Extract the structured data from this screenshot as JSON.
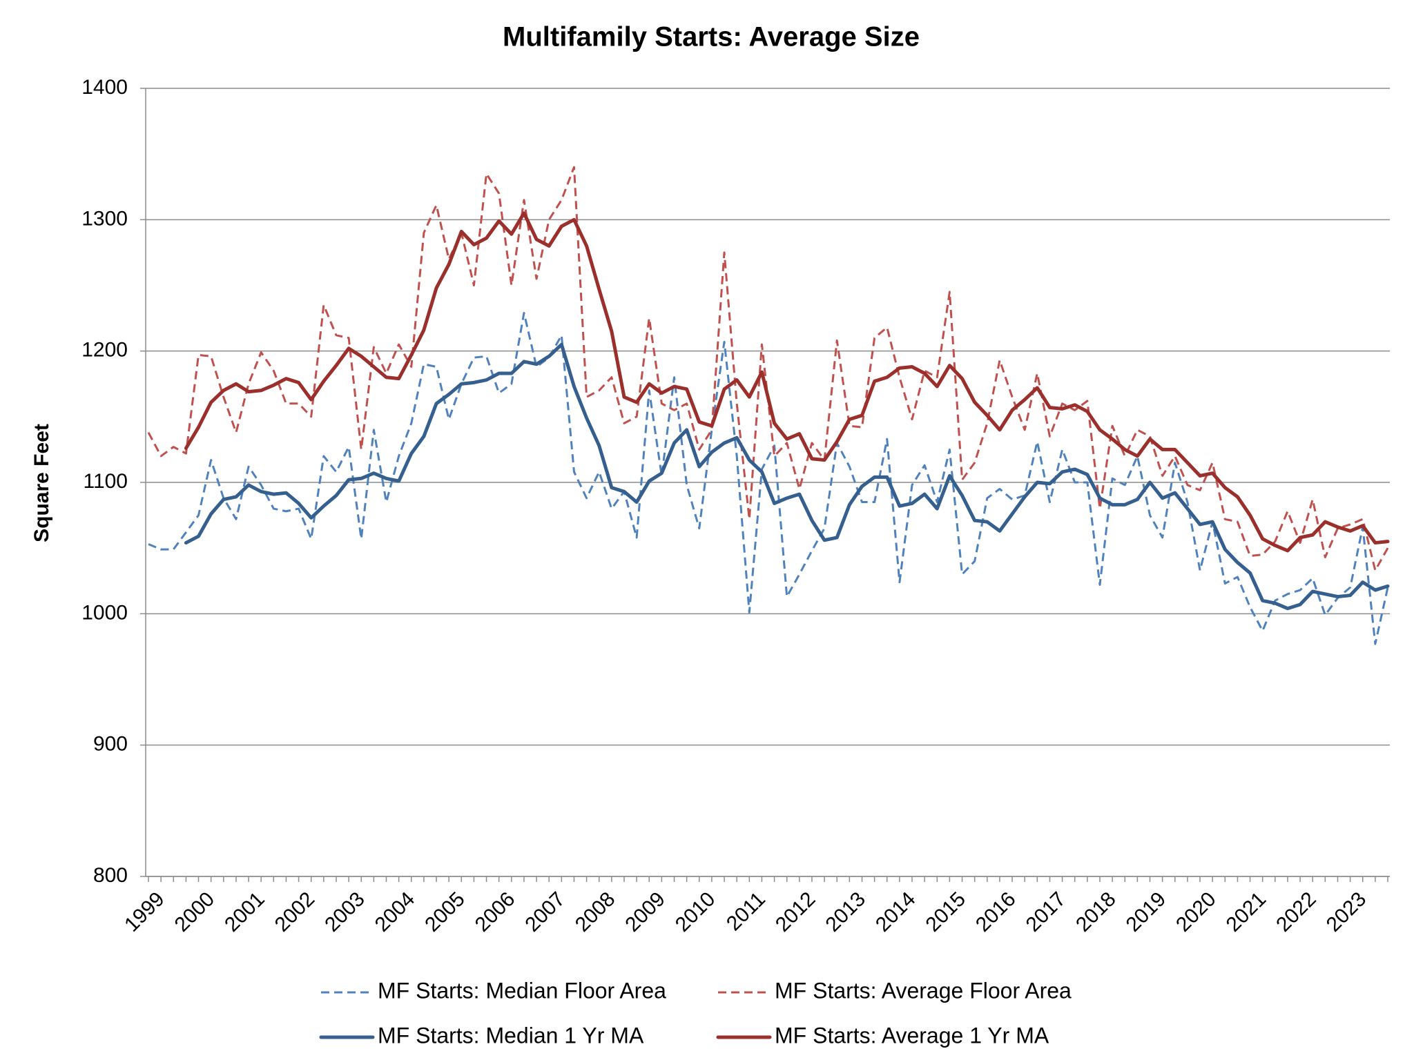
{
  "chart_data": {
    "type": "line",
    "title": "Multifamily Starts: Average Size",
    "y_label": "Square Feet",
    "categories": [
      "1999",
      null,
      null,
      null,
      "2000",
      null,
      null,
      null,
      "2001",
      null,
      null,
      null,
      "2002",
      null,
      null,
      null,
      "2003",
      null,
      null,
      null,
      "2004",
      null,
      null,
      null,
      "2005",
      null,
      null,
      null,
      "2006",
      null,
      null,
      null,
      "2007",
      null,
      null,
      null,
      "2008",
      null,
      null,
      null,
      "2009",
      null,
      null,
      null,
      "2010",
      null,
      null,
      null,
      "2011",
      null,
      null,
      null,
      "2012",
      null,
      null,
      null,
      "2013",
      null,
      null,
      null,
      "2014",
      null,
      null,
      null,
      "2015",
      null,
      null,
      null,
      "2016",
      null,
      null,
      null,
      "2017",
      null,
      null,
      null,
      "2018",
      null,
      null,
      null,
      "2019",
      null,
      null,
      null,
      "2020",
      null,
      null,
      null,
      "2021",
      null,
      null,
      null,
      "2022",
      null,
      null,
      null,
      "2023",
      null,
      null,
      null
    ],
    "ylim": [
      800,
      1400
    ],
    "yticks": [
      800,
      900,
      1000,
      1100,
      1200,
      1300,
      1400
    ],
    "grid": true,
    "legend": "bottom",
    "series": [
      {
        "name": "MF Starts: Median Floor Area",
        "color": "#4f81bd",
        "line_style": "dashed",
        "values": [
          1053,
          1049,
          1049,
          1062,
          1075,
          1117,
          1088,
          1072,
          1112,
          1098,
          1080,
          1078,
          1080,
          1057,
          1120,
          1108,
          1127,
          1057,
          1140,
          1085,
          1120,
          1145,
          1190,
          1188,
          1148,
          1175,
          1195,
          1196,
          1168,
          1175,
          1229,
          1188,
          1195,
          1212,
          1108,
          1088,
          1108,
          1080,
          1093,
          1058,
          1170,
          1105,
          1180,
          1098,
          1065,
          1140,
          1207,
          1120,
          1001,
          1110,
          1128,
          1013,
          1030,
          1048,
          1065,
          1130,
          1112,
          1085,
          1085,
          1133,
          1024,
          1098,
          1113,
          1085,
          1125,
          1030,
          1040,
          1088,
          1095,
          1087,
          1090,
          1131,
          1085,
          1125,
          1100,
          1100,
          1022,
          1103,
          1098,
          1120,
          1075,
          1058,
          1115,
          1085,
          1033,
          1070,
          1023,
          1028,
          1005,
          987,
          1010,
          1015,
          1018,
          1027,
          999,
          1012,
          1020,
          1066,
          977,
          1020
        ]
      },
      {
        "name": "MF Starts: Average Floor Area",
        "color": "#c0504d",
        "line_style": "dashed",
        "values": [
          1138,
          1120,
          1127,
          1122,
          1197,
          1196,
          1165,
          1138,
          1175,
          1199,
          1185,
          1160,
          1160,
          1150,
          1235,
          1212,
          1210,
          1125,
          1203,
          1183,
          1205,
          1188,
          1290,
          1311,
          1270,
          1290,
          1250,
          1335,
          1320,
          1250,
          1315,
          1255,
          1300,
          1315,
          1340,
          1165,
          1170,
          1180,
          1145,
          1150,
          1225,
          1160,
          1155,
          1160,
          1125,
          1140,
          1275,
          1160,
          1072,
          1205,
          1120,
          1130,
          1095,
          1130,
          1117,
          1208,
          1143,
          1142,
          1210,
          1218,
          1180,
          1148,
          1185,
          1180,
          1245,
          1102,
          1115,
          1145,
          1193,
          1165,
          1140,
          1183,
          1135,
          1160,
          1155,
          1162,
          1080,
          1143,
          1120,
          1140,
          1135,
          1105,
          1120,
          1098,
          1094,
          1115,
          1072,
          1070,
          1044,
          1045,
          1055,
          1078,
          1054,
          1087,
          1043,
          1065,
          1068,
          1072,
          1033,
          1050
        ]
      },
      {
        "name": "MF Starts: Median 1 Yr MA",
        "color": "#355f8f",
        "line_style": "solid",
        "values": [
          null,
          null,
          null,
          1054,
          1059,
          1076,
          1087,
          1089,
          1098,
          1093,
          1091,
          1092,
          1084,
          1073,
          1082,
          1090,
          1102,
          1103,
          1107,
          1103,
          1101,
          1122,
          1135,
          1160,
          1167,
          1175,
          1176,
          1178,
          1183,
          1183,
          1192,
          1190,
          1196,
          1205,
          1173,
          1149,
          1128,
          1096,
          1093,
          1085,
          1101,
          1107,
          1130,
          1140,
          1112,
          1123,
          1130,
          1134,
          1117,
          1108,
          1084,
          1088,
          1091,
          1071,
          1056,
          1058,
          1083,
          1097,
          1104,
          1104,
          1082,
          1084,
          1091,
          1080,
          1105,
          1090,
          1071,
          1070,
          1063,
          1076,
          1089,
          1100,
          1099,
          1108,
          1110,
          1106,
          1088,
          1083,
          1083,
          1087,
          1100,
          1088,
          1092,
          1080,
          1068,
          1070,
          1049,
          1039,
          1031,
          1010,
          1008,
          1004,
          1007,
          1017,
          1015,
          1013,
          1014,
          1024,
          1018,
          1021
        ]
      },
      {
        "name": "MF Starts: Average 1 Yr MA",
        "color": "#9a2f2c",
        "line_style": "solid",
        "values": [
          null,
          null,
          null,
          1126,
          1142,
          1161,
          1170,
          1175,
          1169,
          1170,
          1174,
          1179,
          1176,
          1163,
          1177,
          1189,
          1202,
          1196,
          1188,
          1180,
          1179,
          1197,
          1216,
          1248,
          1266,
          1291,
          1281,
          1286,
          1299,
          1289,
          1305,
          1285,
          1280,
          1295,
          1300,
          1280,
          1247,
          1215,
          1165,
          1161,
          1175,
          1168,
          1173,
          1171,
          1146,
          1143,
          1171,
          1178,
          1165,
          1184,
          1145,
          1133,
          1137,
          1118,
          1117,
          1131,
          1148,
          1151,
          1177,
          1180,
          1187,
          1188,
          1183,
          1173,
          1189,
          1179,
          1161,
          1151,
          1140,
          1155,
          1163,
          1172,
          1157,
          1156,
          1159,
          1154,
          1140,
          1133,
          1125,
          1120,
          1133,
          1125,
          1125,
          1115,
          1105,
          1107,
          1096,
          1089,
          1075,
          1057,
          1052,
          1048,
          1058,
          1060,
          1070,
          1066,
          1063,
          1067,
          1054,
          1055
        ]
      }
    ]
  }
}
